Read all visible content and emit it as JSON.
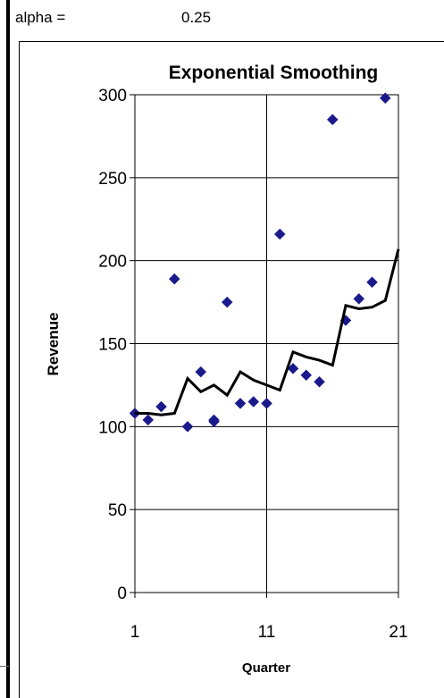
{
  "sheet": {
    "alpha_label": "alpha =",
    "alpha_value": "0.25"
  },
  "chart_data": {
    "type": "scatter",
    "title": "Exponential Smoothing",
    "xlabel": "Quarter",
    "ylabel": "Revenue",
    "xlim": [
      1,
      21
    ],
    "ylim": [
      0,
      300
    ],
    "x_ticks": [
      1,
      11,
      21
    ],
    "y_ticks": [
      0,
      50,
      100,
      150,
      200,
      250,
      300
    ],
    "grid": true,
    "legend": "none",
    "series": [
      {
        "marker": "diamond",
        "color": "#1a1a8c",
        "x": [
          1,
          2,
          3,
          4,
          5,
          6,
          7,
          7,
          8,
          9,
          10,
          11,
          12,
          13,
          14,
          15,
          16,
          17,
          18,
          19,
          20
        ],
        "y": [
          108,
          104,
          112,
          189,
          100,
          133,
          103,
          104,
          175,
          114,
          115,
          114,
          216,
          135,
          131,
          127,
          285,
          164,
          177,
          187,
          298
        ]
      },
      {
        "marker": "none",
        "color": "#000000",
        "x": [
          1,
          2,
          3,
          4,
          5,
          6,
          7,
          8,
          9,
          10,
          11,
          12,
          13,
          14,
          15,
          16,
          17,
          18,
          19,
          20,
          21
        ],
        "y": [
          108,
          108,
          107,
          108,
          129,
          121,
          125,
          119,
          133,
          128,
          125,
          122,
          145,
          142,
          140,
          137,
          173,
          171,
          172,
          176,
          207
        ]
      }
    ]
  }
}
